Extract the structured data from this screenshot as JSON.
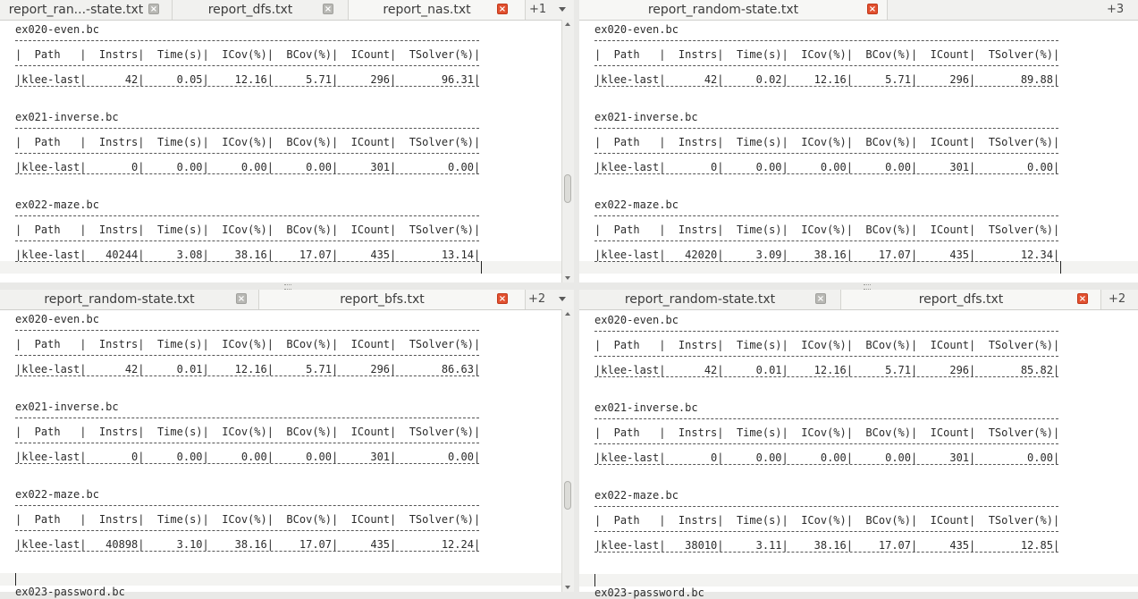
{
  "panes": [
    {
      "tabs": [
        {
          "label": "report_ran...-state.txt",
          "close": "grey"
        },
        {
          "label": "report_dfs.txt",
          "close": "grey"
        },
        {
          "label": "report_nas.txt",
          "close": "red",
          "active": true
        }
      ],
      "more": "+1",
      "show_menu_arrow": true,
      "sections": [
        {
          "title": "ex020-even.bc",
          "header": "|  Path   |  Instrs|  Time(s)|  ICov(%)|  BCov(%)|  ICount|  TSolver(%)|",
          "row": "|klee-last|      42|     0.05|    12.16|     5.71|     296|       96.31|"
        },
        {
          "title": "ex021-inverse.bc",
          "header": "|  Path   |  Instrs|  Time(s)|  ICov(%)|  BCov(%)|  ICount|  TSolver(%)|",
          "row": "|klee-last|       0|     0.00|     0.00|     0.00|     301|        0.00|"
        },
        {
          "title": "ex022-maze.bc",
          "header": "|  Path   |  Instrs|  Time(s)|  ICov(%)|  BCov(%)|  ICount|  TSolver(%)|",
          "row": "|klee-last|   40244|     3.08|    38.16|    17.07|     435|       13.14|"
        }
      ],
      "trailing_line": ""
    },
    {
      "tabs": [
        {
          "label": "report_random-state.txt",
          "close": "red",
          "active": true
        }
      ],
      "more": "+3",
      "show_menu_arrow": false,
      "sections": [
        {
          "title": "ex020-even.bc",
          "header": "|  Path   |  Instrs|  Time(s)|  ICov(%)|  BCov(%)|  ICount|  TSolver(%)|",
          "row": "|klee-last|      42|     0.02|    12.16|     5.71|     296|       89.88|"
        },
        {
          "title": "ex021-inverse.bc",
          "header": "|  Path   |  Instrs|  Time(s)|  ICov(%)|  BCov(%)|  ICount|  TSolver(%)|",
          "row": "|klee-last|       0|     0.00|     0.00|     0.00|     301|        0.00|"
        },
        {
          "title": "ex022-maze.bc",
          "header": "|  Path   |  Instrs|  Time(s)|  ICov(%)|  BCov(%)|  ICount|  TSolver(%)|",
          "row": "|klee-last|   42020|     3.09|    38.16|    17.07|     435|       12.34|"
        }
      ],
      "trailing_line": ""
    },
    {
      "tabs": [
        {
          "label": "report_random-state.txt",
          "close": "grey"
        },
        {
          "label": "report_bfs.txt",
          "close": "red",
          "active": true
        }
      ],
      "more": "+2",
      "show_menu_arrow": true,
      "sections": [
        {
          "title": "ex020-even.bc",
          "header": "|  Path   |  Instrs|  Time(s)|  ICov(%)|  BCov(%)|  ICount|  TSolver(%)|",
          "row": "|klee-last|      42|     0.01|    12.16|     5.71|     296|       86.63|"
        },
        {
          "title": "ex021-inverse.bc",
          "header": "|  Path   |  Instrs|  Time(s)|  ICov(%)|  BCov(%)|  ICount|  TSolver(%)|",
          "row": "|klee-last|       0|     0.00|     0.00|     0.00|     301|        0.00|"
        },
        {
          "title": "ex022-maze.bc",
          "header": "|  Path   |  Instrs|  Time(s)|  ICov(%)|  BCov(%)|  ICount|  TSolver(%)|",
          "row": "|klee-last|   40898|     3.10|    38.16|    17.07|     435|       12.24|"
        }
      ],
      "trailing_line": "ex023-password.bc"
    },
    {
      "tabs": [
        {
          "label": "report_random-state.txt",
          "close": "grey"
        },
        {
          "label": "report_dfs.txt",
          "close": "red",
          "active": true
        }
      ],
      "more": "+2",
      "show_menu_arrow": false,
      "sections": [
        {
          "title": "ex020-even.bc",
          "header": "|  Path   |  Instrs|  Time(s)|  ICov(%)|  BCov(%)|  ICount|  TSolver(%)|",
          "row": "|klee-last|      42|     0.01|    12.16|     5.71|     296|       85.82|"
        },
        {
          "title": "ex021-inverse.bc",
          "header": "|  Path   |  Instrs|  Time(s)|  ICov(%)|  BCov(%)|  ICount|  TSolver(%)|",
          "row": "|klee-last|       0|     0.00|     0.00|     0.00|     301|        0.00|"
        },
        {
          "title": "ex022-maze.bc",
          "header": "|  Path   |  Instrs|  Time(s)|  ICov(%)|  BCov(%)|  ICount|  TSolver(%)|",
          "row": "|klee-last|   38010|     3.11|    38.16|    17.07|     435|       12.85|"
        }
      ],
      "trailing_line": "ex023-password.bc"
    }
  ],
  "icons": {
    "close": "close-icon",
    "menu": "chevron-down-icon"
  }
}
